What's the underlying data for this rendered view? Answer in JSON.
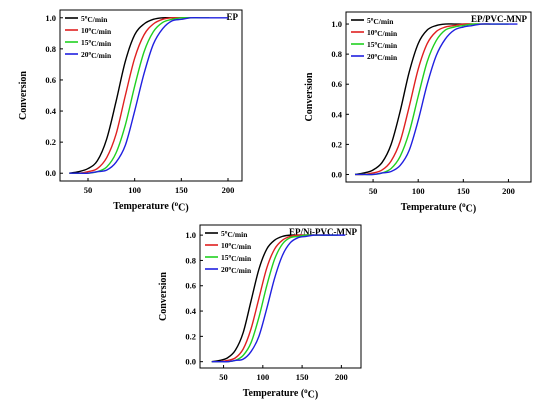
{
  "chart_data": [
    {
      "type": "line",
      "title": "EP",
      "xlabel": "Temperature (oC)",
      "ylabel": "Conversion",
      "xlim": [
        20,
        215
      ],
      "ylim": [
        -0.05,
        1.05
      ],
      "xticks": [
        "50",
        "100",
        "150",
        "200"
      ],
      "yticks": [
        "0.0",
        "0.2",
        "0.4",
        "0.6",
        "0.8",
        "1.0"
      ],
      "legend_position": "top-left",
      "grid": false,
      "series": [
        {
          "name": "5oC/min",
          "color": "#000000",
          "x": [
            30,
            40,
            50,
            60,
            70,
            80,
            90,
            100,
            110,
            120,
            130,
            140,
            150,
            160
          ],
          "y": [
            0.0,
            0.01,
            0.03,
            0.08,
            0.22,
            0.46,
            0.72,
            0.89,
            0.96,
            0.99,
            1.0,
            1.0,
            1.0,
            1.0
          ]
        },
        {
          "name": "10oC/min",
          "color": "#e02020",
          "x": [
            30,
            40,
            50,
            60,
            70,
            80,
            90,
            100,
            110,
            120,
            130,
            140,
            150,
            160,
            170
          ],
          "y": [
            0.0,
            0.0,
            0.01,
            0.03,
            0.1,
            0.25,
            0.5,
            0.74,
            0.89,
            0.96,
            0.99,
            1.0,
            1.0,
            1.0,
            1.0
          ]
        },
        {
          "name": "15oC/min",
          "color": "#20d020",
          "x": [
            30,
            40,
            50,
            60,
            70,
            80,
            90,
            100,
            110,
            120,
            130,
            140,
            150,
            160,
            170,
            180
          ],
          "y": [
            0.0,
            0.0,
            0.0,
            0.01,
            0.04,
            0.13,
            0.31,
            0.56,
            0.78,
            0.91,
            0.97,
            0.99,
            1.0,
            1.0,
            1.0,
            1.0
          ]
        },
        {
          "name": "20oC/min",
          "color": "#2020e0",
          "x": [
            30,
            40,
            50,
            60,
            70,
            80,
            90,
            100,
            110,
            120,
            130,
            140,
            150,
            160,
            170,
            180,
            190,
            200
          ],
          "y": [
            0.0,
            0.0,
            0.0,
            0.01,
            0.02,
            0.07,
            0.18,
            0.4,
            0.64,
            0.83,
            0.93,
            0.98,
            0.99,
            1.0,
            1.0,
            1.0,
            1.0,
            1.0
          ]
        }
      ]
    },
    {
      "type": "line",
      "title": "EP/PVC-MNP",
      "xlabel": "Temperature (oC)",
      "ylabel": "Conversion",
      "xlim": [
        20,
        225
      ],
      "ylim": [
        -0.05,
        1.08
      ],
      "xticks": [
        "50",
        "100",
        "150",
        "200"
      ],
      "yticks": [
        "0.0",
        "0.2",
        "0.4",
        "0.6",
        "0.8",
        "1.0"
      ],
      "legend_position": "top-left",
      "grid": false,
      "series": [
        {
          "name": "5oC/min",
          "color": "#000000",
          "x": [
            30,
            40,
            50,
            60,
            70,
            80,
            90,
            100,
            110,
            120,
            130,
            140,
            150,
            160
          ],
          "y": [
            0.0,
            0.01,
            0.03,
            0.08,
            0.2,
            0.42,
            0.68,
            0.87,
            0.96,
            0.99,
            1.0,
            1.0,
            1.0,
            1.0
          ]
        },
        {
          "name": "10oC/min",
          "color": "#e02020",
          "x": [
            30,
            40,
            50,
            60,
            70,
            80,
            90,
            100,
            110,
            120,
            130,
            140,
            150,
            160,
            170,
            180
          ],
          "y": [
            0.0,
            0.0,
            0.01,
            0.03,
            0.09,
            0.22,
            0.45,
            0.7,
            0.87,
            0.95,
            0.98,
            0.99,
            1.0,
            1.0,
            1.0,
            1.0
          ]
        },
        {
          "name": "15oC/min",
          "color": "#20d020",
          "x": [
            30,
            40,
            50,
            60,
            70,
            80,
            90,
            100,
            110,
            120,
            130,
            140,
            150,
            160,
            170,
            180,
            190,
            200
          ],
          "y": [
            0.0,
            0.0,
            0.0,
            0.01,
            0.04,
            0.12,
            0.28,
            0.52,
            0.75,
            0.89,
            0.96,
            0.98,
            0.99,
            1.0,
            1.0,
            1.0,
            1.0,
            1.0
          ]
        },
        {
          "name": "20oC/min",
          "color": "#2020e0",
          "x": [
            30,
            40,
            50,
            60,
            70,
            80,
            90,
            100,
            110,
            120,
            130,
            140,
            150,
            160,
            170,
            180,
            190,
            200,
            210
          ],
          "y": [
            0.0,
            0.0,
            0.0,
            0.01,
            0.02,
            0.06,
            0.16,
            0.36,
            0.6,
            0.79,
            0.9,
            0.96,
            0.98,
            0.99,
            1.0,
            1.0,
            1.0,
            1.0,
            1.0
          ]
        }
      ]
    },
    {
      "type": "line",
      "title": "EP/Ni-PVC-MNP",
      "xlabel": "Temperature (oC)",
      "ylabel": "Conversion",
      "xlim": [
        20,
        225
      ],
      "ylim": [
        -0.05,
        1.08
      ],
      "xticks": [
        "50",
        "100",
        "150",
        "200"
      ],
      "yticks": [
        "0.0",
        "0.2",
        "0.4",
        "0.6",
        "0.8",
        "1.0"
      ],
      "legend_position": "top-left",
      "grid": false,
      "series": [
        {
          "name": "5oC/min",
          "color": "#000000",
          "x": [
            35,
            45,
            55,
            65,
            75,
            85,
            95,
            105,
            115,
            125,
            135,
            145,
            155,
            165
          ],
          "y": [
            0.0,
            0.01,
            0.03,
            0.09,
            0.23,
            0.48,
            0.73,
            0.89,
            0.96,
            0.99,
            1.0,
            1.0,
            1.0,
            1.0
          ]
        },
        {
          "name": "10oC/min",
          "color": "#e02020",
          "x": [
            35,
            45,
            55,
            65,
            75,
            85,
            95,
            105,
            115,
            125,
            135,
            145,
            155,
            165,
            175,
            185
          ],
          "y": [
            0.0,
            0.0,
            0.01,
            0.03,
            0.1,
            0.26,
            0.5,
            0.74,
            0.89,
            0.96,
            0.99,
            1.0,
            1.0,
            1.0,
            1.0,
            1.0
          ]
        },
        {
          "name": "15oC/min",
          "color": "#20d020",
          "x": [
            35,
            45,
            55,
            65,
            75,
            85,
            95,
            105,
            115,
            125,
            135,
            145,
            155,
            165,
            175,
            185,
            195
          ],
          "y": [
            0.0,
            0.0,
            0.0,
            0.01,
            0.05,
            0.15,
            0.35,
            0.6,
            0.81,
            0.93,
            0.98,
            0.99,
            1.0,
            1.0,
            1.0,
            1.0,
            1.0
          ]
        },
        {
          "name": "20oC/min",
          "color": "#2020e0",
          "x": [
            35,
            45,
            55,
            65,
            75,
            85,
            95,
            105,
            115,
            125,
            135,
            145,
            155,
            165,
            175,
            185,
            195,
            205
          ],
          "y": [
            0.0,
            0.0,
            0.0,
            0.01,
            0.02,
            0.08,
            0.2,
            0.42,
            0.66,
            0.84,
            0.94,
            0.98,
            0.99,
            1.0,
            1.0,
            1.0,
            1.0,
            1.0
          ]
        }
      ]
    }
  ]
}
